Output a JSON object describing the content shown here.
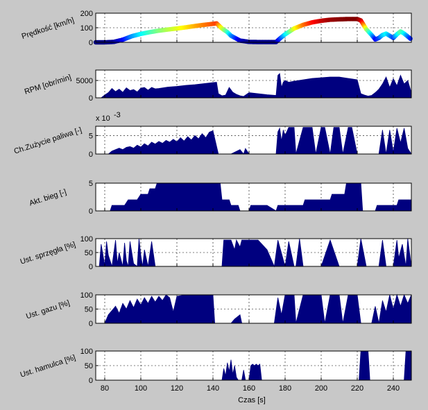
{
  "colors": {
    "fill": "#00007f",
    "figure_bg": "#c8c8c8",
    "axes_bg": "#ffffff"
  },
  "chart_data": [
    {
      "type": "scatter",
      "ylabel": "Prędkość [km/h]",
      "xlim": [
        75,
        250
      ],
      "ylim": [
        0,
        200
      ],
      "yticks": [
        0,
        100,
        200
      ],
      "grid": true,
      "colormap": "jet",
      "x": [
        75,
        80,
        85,
        90,
        95,
        100,
        105,
        110,
        115,
        120,
        125,
        130,
        135,
        140,
        142,
        145,
        148,
        150,
        155,
        160,
        165,
        170,
        175,
        177,
        180,
        185,
        190,
        195,
        200,
        205,
        210,
        215,
        220,
        222,
        225,
        228,
        230,
        232,
        234,
        236,
        238,
        240,
        242,
        244,
        246,
        248,
        250
      ],
      "values": [
        0,
        0,
        3,
        18,
        42,
        58,
        70,
        80,
        88,
        95,
        103,
        112,
        120,
        127,
        130,
        95,
        70,
        45,
        12,
        3,
        2,
        2,
        2,
        25,
        55,
        95,
        120,
        137,
        148,
        155,
        158,
        160,
        160,
        150,
        90,
        50,
        20,
        30,
        50,
        60,
        45,
        30,
        55,
        75,
        60,
        40,
        20
      ]
    },
    {
      "type": "area",
      "ylabel": "RPM [obr/min]",
      "xlim": [
        75,
        250
      ],
      "ylim": [
        0,
        8000
      ],
      "yticks": [
        0,
        5000
      ],
      "grid": true,
      "x": [
        75,
        78,
        80,
        82,
        84,
        86,
        88,
        90,
        92,
        94,
        96,
        98,
        100,
        102,
        104,
        106,
        108,
        110,
        115,
        120,
        125,
        130,
        135,
        140,
        142,
        143,
        145,
        147,
        149,
        151,
        153,
        155,
        157,
        160,
        165,
        170,
        175,
        176,
        177,
        178,
        179,
        180,
        182,
        185,
        190,
        195,
        200,
        205,
        210,
        215,
        220,
        222,
        224,
        226,
        228,
        230,
        232,
        234,
        236,
        238,
        240,
        242,
        244,
        246,
        248,
        250
      ],
      "values": [
        0,
        0,
        800,
        1500,
        2700,
        1800,
        2500,
        1600,
        2900,
        2100,
        2400,
        1700,
        2800,
        3000,
        2200,
        3000,
        2600,
        2700,
        3100,
        3300,
        3600,
        3800,
        4100,
        4400,
        4500,
        1200,
        600,
        800,
        3000,
        1600,
        1000,
        600,
        400,
        1500,
        1200,
        900,
        700,
        6500,
        7000,
        3000,
        4500,
        5000,
        4500,
        4800,
        5200,
        5600,
        5800,
        6000,
        6000,
        5600,
        5200,
        1200,
        800,
        500,
        700,
        1500,
        2500,
        4000,
        6000,
        3000,
        5500,
        3500,
        6500,
        4000,
        5000,
        1500
      ]
    },
    {
      "type": "area",
      "ylabel": "Ch.Zużycie paliwa [-]",
      "exponent_label": "x 10",
      "exponent_power": "-3",
      "xlim": [
        75,
        250
      ],
      "ylim": [
        0,
        7.5
      ],
      "yticks": [
        0,
        5
      ],
      "grid": true,
      "x": [
        75,
        82,
        84,
        86,
        88,
        90,
        92,
        94,
        96,
        98,
        100,
        102,
        104,
        106,
        108,
        110,
        112,
        114,
        116,
        118,
        120,
        122,
        124,
        126,
        128,
        130,
        132,
        134,
        136,
        138,
        140,
        143,
        145,
        150,
        155,
        157,
        158,
        160,
        165,
        170,
        175,
        176,
        177,
        178,
        179,
        180,
        182,
        185,
        186,
        190,
        195,
        197,
        200,
        202,
        205,
        207,
        210,
        212,
        215,
        217,
        220,
        222,
        225,
        228,
        230,
        232,
        234,
        236,
        238,
        240,
        242,
        244,
        246,
        248,
        250
      ],
      "values": [
        0,
        0,
        0.8,
        1.2,
        1.6,
        1.2,
        1.8,
        2.0,
        1.6,
        2.4,
        1.9,
        2.8,
        2.2,
        3.2,
        2.7,
        3.4,
        2.9,
        3.7,
        3.2,
        4.0,
        3.3,
        4.4,
        3.5,
        4.7,
        3.8,
        5.0,
        4.1,
        5.5,
        4.4,
        5.9,
        6.3,
        0,
        0,
        0,
        1.2,
        0,
        1.5,
        0,
        0,
        0,
        0,
        6.0,
        7.0,
        3.5,
        6.5,
        5.0,
        7.2,
        7.2,
        0,
        7.2,
        7.2,
        0,
        7.2,
        7.2,
        0,
        7.2,
        7.2,
        0,
        7.2,
        7.2,
        0,
        0,
        0,
        0,
        0,
        0,
        6.5,
        0,
        6.5,
        0.5,
        7.0,
        3.0,
        7.0,
        1.5,
        0
      ]
    },
    {
      "type": "area",
      "ylabel": "Akt. bieg [-]",
      "xlim": [
        75,
        250
      ],
      "ylim": [
        0,
        5
      ],
      "yticks": [
        0,
        5
      ],
      "grid": true,
      "x": [
        75,
        83,
        84,
        91,
        93,
        98,
        100,
        104,
        105,
        108,
        109,
        144,
        145,
        149,
        150,
        154,
        155,
        160,
        161,
        170,
        175,
        176,
        190,
        191,
        205,
        206,
        213,
        214,
        222,
        223,
        230,
        231,
        242,
        243,
        250
      ],
      "values": [
        0,
        0,
        1,
        1,
        2,
        2,
        3,
        3,
        4,
        4,
        5,
        5,
        2,
        2,
        1,
        1,
        0,
        0,
        1,
        1,
        0,
        1,
        1,
        2,
        2,
        3,
        3,
        5,
        5,
        0,
        0,
        1,
        1,
        2,
        2
      ]
    },
    {
      "type": "area",
      "ylabel": "Ust. sprzęgła [%]",
      "xlim": [
        75,
        250
      ],
      "ylim": [
        0,
        100
      ],
      "yticks": [
        0,
        50,
        100
      ],
      "grid": true,
      "x": [
        75,
        77,
        78,
        80,
        81,
        82,
        84,
        86,
        87,
        88,
        90,
        91,
        92,
        93,
        94,
        96,
        98,
        99,
        100,
        101,
        102,
        104,
        106,
        108,
        110,
        130,
        140,
        143,
        145,
        146,
        150,
        152,
        153,
        155,
        156,
        160,
        162,
        165,
        170,
        174,
        176,
        180,
        182,
        185,
        186,
        188,
        190,
        195,
        200,
        205,
        210,
        215,
        220,
        222,
        225,
        227,
        230,
        232,
        234,
        236,
        238,
        240,
        242,
        243,
        245,
        247,
        248,
        250
      ],
      "values": [
        0,
        0,
        80,
        5,
        90,
        40,
        0,
        95,
        10,
        50,
        0,
        85,
        20,
        0,
        90,
        10,
        0,
        100,
        40,
        0,
        60,
        0,
        90,
        0,
        0,
        0,
        0,
        0,
        0,
        95,
        95,
        60,
        95,
        70,
        95,
        95,
        95,
        95,
        60,
        0,
        95,
        0,
        90,
        0,
        0,
        100,
        0,
        0,
        0,
        95,
        0,
        0,
        0,
        100,
        0,
        0,
        0,
        0,
        95,
        0,
        0,
        0,
        95,
        30,
        80,
        0,
        100,
        0
      ]
    },
    {
      "type": "area",
      "ylabel": "Ust. gazu [%]",
      "xlim": [
        75,
        250
      ],
      "ylim": [
        0,
        100
      ],
      "yticks": [
        0,
        50,
        100
      ],
      "grid": true,
      "x": [
        75,
        80,
        82,
        84,
        86,
        88,
        90,
        92,
        94,
        96,
        98,
        100,
        102,
        104,
        106,
        108,
        110,
        112,
        114,
        116,
        118,
        120,
        125,
        130,
        135,
        140,
        141,
        143,
        145,
        150,
        152,
        155,
        156,
        158,
        160,
        170,
        174,
        176,
        178,
        180,
        182,
        185,
        186,
        190,
        191,
        200,
        202,
        205,
        207,
        210,
        212,
        215,
        217,
        220,
        222,
        225,
        226,
        228,
        230,
        232,
        234,
        236,
        238,
        240,
        242,
        244,
        246,
        248,
        250
      ],
      "values": [
        0,
        0,
        30,
        45,
        60,
        35,
        70,
        50,
        80,
        55,
        85,
        65,
        90,
        70,
        95,
        75,
        95,
        80,
        100,
        90,
        40,
        95,
        100,
        100,
        100,
        100,
        0,
        0,
        0,
        0,
        15,
        30,
        0,
        0,
        0,
        0,
        0,
        90,
        30,
        100,
        100,
        100,
        0,
        100,
        100,
        100,
        0,
        100,
        100,
        100,
        0,
        100,
        100,
        100,
        0,
        0,
        0,
        0,
        60,
        0,
        80,
        40,
        100,
        50,
        100,
        60,
        100,
        70,
        100
      ]
    },
    {
      "type": "area",
      "ylabel": "Ust. hamulca [%]",
      "xlabel": "Czas [s]",
      "xlim": [
        75,
        250
      ],
      "ylim": [
        0,
        100
      ],
      "yticks": [
        0,
        50,
        100
      ],
      "xticks": [
        80,
        100,
        120,
        140,
        160,
        180,
        200,
        220,
        240
      ],
      "grid": true,
      "x": [
        75,
        145,
        146,
        147,
        148,
        149,
        150,
        151,
        152,
        153,
        154,
        155,
        156,
        157,
        158,
        159,
        160,
        161,
        162,
        163,
        164,
        165,
        166,
        167,
        220,
        221,
        222,
        226,
        227,
        228,
        246,
        247,
        250
      ],
      "values": [
        0,
        0,
        40,
        15,
        60,
        30,
        70,
        20,
        50,
        10,
        0,
        0,
        0,
        35,
        0,
        0,
        0,
        50,
        55,
        50,
        55,
        50,
        55,
        0,
        0,
        0,
        100,
        100,
        0,
        0,
        0,
        100,
        100
      ]
    }
  ]
}
